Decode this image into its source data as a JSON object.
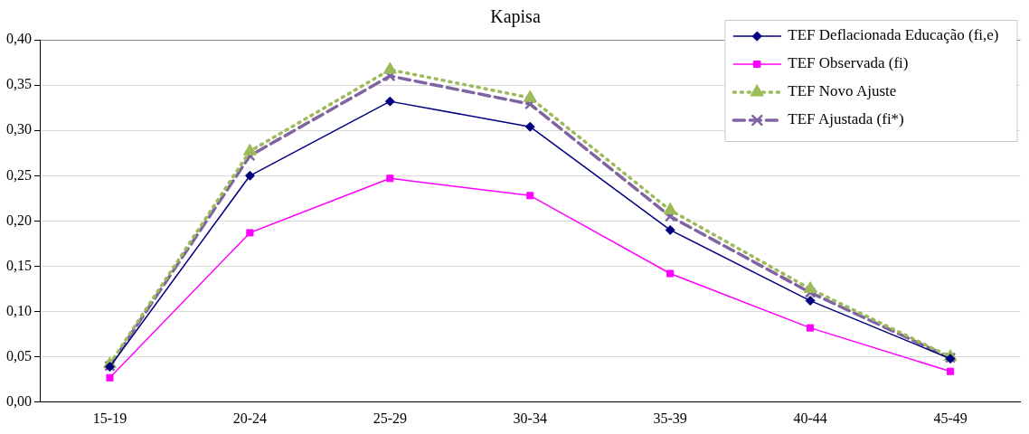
{
  "chart_data": {
    "type": "line",
    "title": "Kapisa",
    "categories": [
      "15-19",
      "20-24",
      "25-29",
      "30-34",
      "35-39",
      "40-44",
      "45-49"
    ],
    "series": [
      {
        "name": "TEF Deflacionada Educação (fi,e)",
        "color": "#000080",
        "marker": "diamond",
        "line_style": "solid",
        "values": [
          0.039,
          0.25,
          0.332,
          0.304,
          0.19,
          0.112,
          0.048
        ]
      },
      {
        "name": "TEF Observada (fi)",
        "color": "#ff00ff",
        "marker": "square",
        "line_style": "solid",
        "values": [
          0.027,
          0.187,
          0.247,
          0.228,
          0.142,
          0.082,
          0.034
        ]
      },
      {
        "name": "TEF Novo Ajuste",
        "color": "#9bbb59",
        "marker": "triangle",
        "line_style": "dotted",
        "values": [
          0.042,
          0.277,
          0.367,
          0.336,
          0.212,
          0.125,
          0.05
        ]
      },
      {
        "name": "TEF Ajustada (fi*)",
        "color": "#8064a2",
        "marker": "cross",
        "line_style": "dashed",
        "values": [
          0.04,
          0.272,
          0.36,
          0.329,
          0.205,
          0.121,
          0.049
        ]
      }
    ],
    "ylim": [
      0,
      0.4
    ],
    "yticks": [
      {
        "value": 0,
        "label": "0,00"
      },
      {
        "value": 0.05,
        "label": "0,05"
      },
      {
        "value": 0.1,
        "label": "0,10"
      },
      {
        "value": 0.15,
        "label": "0,15"
      },
      {
        "value": 0.2,
        "label": "0,20"
      },
      {
        "value": 0.25,
        "label": "0,25"
      },
      {
        "value": 0.3,
        "label": "0,30"
      },
      {
        "value": 0.35,
        "label": "0,35"
      },
      {
        "value": 0.4,
        "label": "0,40"
      }
    ],
    "grid": "y",
    "legend": "top right"
  }
}
